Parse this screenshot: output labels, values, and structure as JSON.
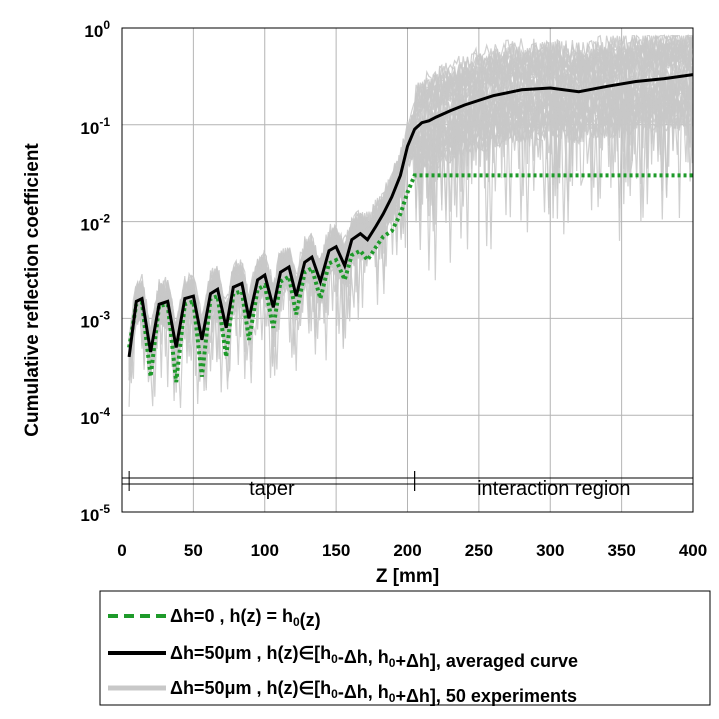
{
  "chart_data": {
    "type": "line",
    "title": "",
    "xlabel": "Z [mm]",
    "ylabel": "Cumulative reflection coefficient",
    "xlim": [
      0,
      400
    ],
    "ylim_log10": [
      -5,
      0
    ],
    "y_scale": "log",
    "grid": true,
    "x_ticks": [
      {
        "value": 0,
        "label": "0"
      },
      {
        "value": 50,
        "label": "50"
      },
      {
        "value": 100,
        "label": "100"
      },
      {
        "value": 150,
        "label": "150"
      },
      {
        "value": 200,
        "label": "200"
      },
      {
        "value": 250,
        "label": "250"
      },
      {
        "value": 300,
        "label": "300"
      },
      {
        "value": 350,
        "label": "350"
      },
      {
        "value": 400,
        "label": "400"
      }
    ],
    "y_ticks": [
      {
        "exp": 0,
        "base": "10",
        "sup": "0"
      },
      {
        "exp": -1,
        "base": "10",
        "sup": "-1"
      },
      {
        "exp": -2,
        "base": "10",
        "sup": "-2"
      },
      {
        "exp": -3,
        "base": "10",
        "sup": "-3"
      },
      {
        "exp": -4,
        "base": "10",
        "sup": "-4"
      },
      {
        "exp": -5,
        "base": "10",
        "sup": "-5"
      }
    ],
    "regions": [
      {
        "label": "taper",
        "x_start": 5,
        "x_end": 205
      },
      {
        "label": "interaction region",
        "x_start": 205,
        "x_end": 400
      }
    ],
    "series": [
      {
        "name": "Δh=0 , h(z) = h0(z)",
        "color": "#1e9a2a",
        "style": "dotted",
        "x": [
          5,
          10,
          14,
          20,
          26,
          32,
          38,
          44,
          50,
          56,
          62,
          67,
          73,
          78,
          84,
          89,
          95,
          100,
          106,
          111,
          117,
          122,
          128,
          133,
          139,
          145,
          150,
          156,
          161,
          167,
          172,
          178,
          183,
          189,
          195,
          200,
          205,
          230,
          260,
          300,
          350,
          400
        ],
        "y": [
          0.0005,
          0.0014,
          0.00145,
          0.00025,
          0.00135,
          0.0014,
          0.00022,
          0.0014,
          0.0015,
          0.00025,
          0.0016,
          0.0017,
          0.0004,
          0.0018,
          0.0019,
          0.0006,
          0.002,
          0.0022,
          0.0008,
          0.0024,
          0.0027,
          0.0011,
          0.003,
          0.0033,
          0.0016,
          0.0037,
          0.004,
          0.0025,
          0.0045,
          0.005,
          0.004,
          0.0055,
          0.007,
          0.008,
          0.012,
          0.02,
          0.03,
          0.03,
          0.03,
          0.03,
          0.03,
          0.03
        ]
      },
      {
        "name": "Δh=50μm , h(z)∈[h0-Δh, h0+Δh], averaged curve",
        "color": "#000000",
        "style": "solid",
        "x": [
          5,
          10,
          14,
          20,
          26,
          32,
          38,
          44,
          50,
          56,
          62,
          67,
          73,
          78,
          84,
          89,
          95,
          100,
          106,
          111,
          117,
          122,
          128,
          133,
          139,
          145,
          150,
          156,
          161,
          167,
          172,
          178,
          183,
          189,
          195,
          200,
          205,
          210,
          215,
          220,
          230,
          240,
          260,
          280,
          300,
          320,
          340,
          360,
          380,
          400
        ],
        "y": [
          0.0004,
          0.0015,
          0.0016,
          0.00045,
          0.0014,
          0.0015,
          0.0005,
          0.0016,
          0.0017,
          0.0006,
          0.0018,
          0.002,
          0.0008,
          0.0021,
          0.0023,
          0.001,
          0.0025,
          0.0028,
          0.0013,
          0.003,
          0.0034,
          0.0017,
          0.0038,
          0.0043,
          0.0024,
          0.005,
          0.0055,
          0.0035,
          0.0065,
          0.0075,
          0.0065,
          0.009,
          0.012,
          0.018,
          0.03,
          0.06,
          0.09,
          0.105,
          0.11,
          0.12,
          0.14,
          0.16,
          0.2,
          0.23,
          0.24,
          0.22,
          0.25,
          0.28,
          0.3,
          0.33
        ]
      },
      {
        "name": "Δh=50μm , h(z)∈[h0-Δh, h0+Δh], 50 experiments",
        "color": "#c8c8c8",
        "style": "solid",
        "experiments": 50
      }
    ],
    "legend": {
      "placement": "below",
      "entries": [
        {
          "prefix": "Δh=0 , h(z) = h",
          "sub": "0",
          "suffix": "(z)"
        },
        {
          "prefix": "Δh=50μm , h(z)∈[h",
          "sub": "0",
          "mid": "-Δh, h",
          "sub2": "0",
          "suffix": "+Δh], averaged curve"
        },
        {
          "prefix": "Δh=50μm , h(z)∈[h",
          "sub": "0",
          "mid": "-Δh, h",
          "sub2": "0",
          "suffix": "+Δh], 50 experiments"
        }
      ]
    }
  }
}
